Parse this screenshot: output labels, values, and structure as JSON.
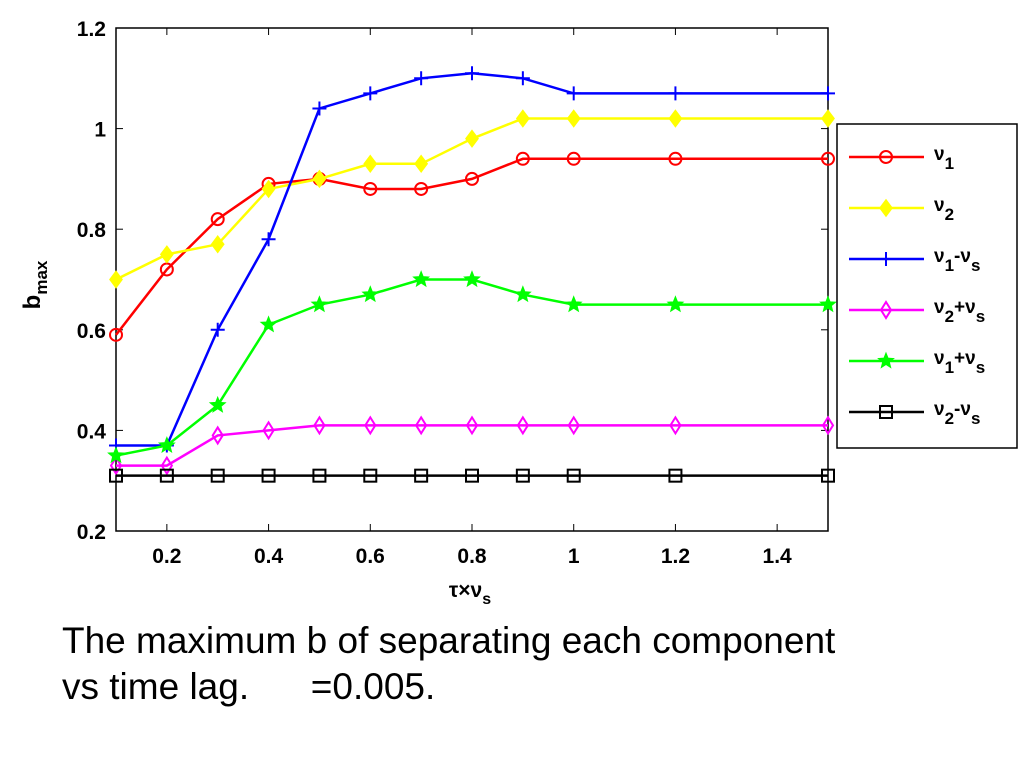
{
  "chart_data": {
    "type": "line",
    "xlabel": {
      "main": "τ×ν",
      "sub": "s"
    },
    "ylabel": {
      "main": "b",
      "sub": "max"
    },
    "xlim": [
      0.1,
      1.5
    ],
    "ylim": [
      0.2,
      1.2
    ],
    "xticks": [
      0.2,
      0.4,
      0.6,
      0.8,
      1,
      1.2,
      1.4
    ],
    "yticks": [
      0.2,
      0.4,
      0.6,
      0.8,
      1,
      1.2
    ],
    "xtick_labels": [
      "0.2",
      "0.4",
      "0.6",
      "0.8",
      "1",
      "1.2",
      "1.4"
    ],
    "ytick_labels": [
      "0.2",
      "0.4",
      "0.6",
      "0.8",
      "1",
      "1.2"
    ],
    "grid": false,
    "legend_position": "right-outside",
    "x": [
      0.1,
      0.2,
      0.3,
      0.4,
      0.5,
      0.6,
      0.7,
      0.8,
      0.9,
      1.0,
      1.2,
      1.5
    ],
    "series": [
      {
        "name": "ν1",
        "parts": [
          [
            "ν",
            ""
          ],
          [
            "1",
            "sub"
          ]
        ],
        "color": "#ff0000",
        "marker": "circle",
        "values": [
          0.59,
          0.72,
          0.82,
          0.89,
          0.9,
          0.88,
          0.88,
          0.9,
          0.94,
          0.94,
          0.94,
          0.94
        ]
      },
      {
        "name": "ν2",
        "parts": [
          [
            "ν",
            ""
          ],
          [
            "2",
            "sub"
          ]
        ],
        "color": "#ffff00",
        "marker": "diamond-filled",
        "values": [
          0.7,
          0.75,
          0.77,
          0.88,
          0.9,
          0.93,
          0.93,
          0.98,
          1.02,
          1.02,
          1.02,
          1.02
        ]
      },
      {
        "name": "ν1-νs",
        "parts": [
          [
            "ν",
            ""
          ],
          [
            "1",
            "sub"
          ],
          [
            "-ν",
            ""
          ],
          [
            "s",
            "sub"
          ]
        ],
        "color": "#0000ff",
        "marker": "plus",
        "values": [
          0.37,
          0.37,
          0.6,
          0.78,
          1.04,
          1.07,
          1.1,
          1.11,
          1.1,
          1.07,
          1.07,
          1.07
        ]
      },
      {
        "name": "ν2+νs",
        "parts": [
          [
            "ν",
            ""
          ],
          [
            "2",
            "sub"
          ],
          [
            "+ν",
            ""
          ],
          [
            "s",
            "sub"
          ]
        ],
        "color": "#ff00ff",
        "marker": "diamond",
        "values": [
          0.33,
          0.33,
          0.39,
          0.4,
          0.41,
          0.41,
          0.41,
          0.41,
          0.41,
          0.41,
          0.41,
          0.41
        ]
      },
      {
        "name": "ν1+νs",
        "parts": [
          [
            "ν",
            ""
          ],
          [
            "1",
            "sub"
          ],
          [
            "+ν",
            ""
          ],
          [
            "s",
            "sub"
          ]
        ],
        "color": "#00ff00",
        "marker": "star",
        "values": [
          0.35,
          0.37,
          0.45,
          0.61,
          0.65,
          0.67,
          0.7,
          0.7,
          0.67,
          0.65,
          0.65,
          0.65
        ]
      },
      {
        "name": "ν2-νs",
        "parts": [
          [
            "ν",
            ""
          ],
          [
            "2",
            "sub"
          ],
          [
            "-ν",
            ""
          ],
          [
            "s",
            "sub"
          ]
        ],
        "color": "#000000",
        "marker": "square",
        "values": [
          0.31,
          0.31,
          0.31,
          0.31,
          0.31,
          0.31,
          0.31,
          0.31,
          0.31,
          0.31,
          0.31,
          0.31
        ]
      }
    ]
  },
  "caption": {
    "line1": "The maximum b of separating each component",
    "line2": "vs time lag.      =0.005."
  }
}
